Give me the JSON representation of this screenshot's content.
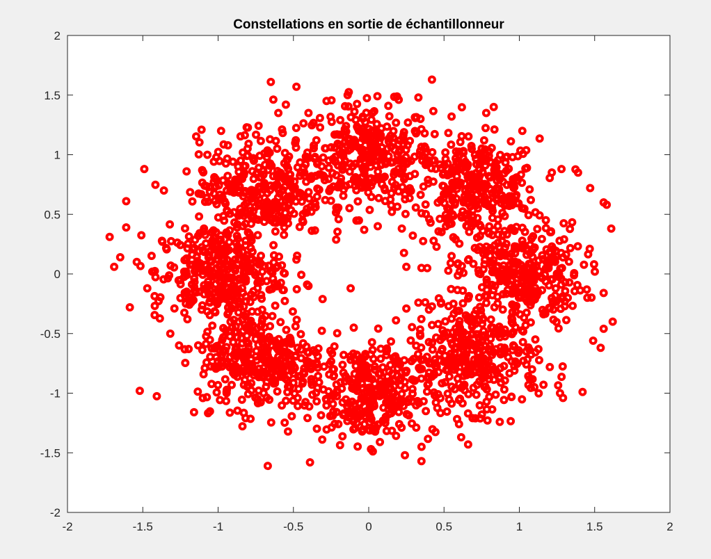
{
  "chart_data": {
    "type": "scatter",
    "title": "Constellations en sortie de échantillonneur",
    "xlabel": "",
    "ylabel": "",
    "xlim": [
      -2,
      2
    ],
    "ylim": [
      -2,
      2
    ],
    "x_ticks": [
      -2,
      -1.5,
      -1,
      -0.5,
      0,
      0.5,
      1,
      1.5,
      2
    ],
    "y_ticks": [
      -2,
      -1.5,
      -1,
      -0.5,
      0,
      0.5,
      1,
      1.5,
      2
    ],
    "x_tick_labels": [
      "-2",
      "-1.5",
      "-1",
      "-0.5",
      "0",
      "0.5",
      "1",
      "1.5",
      "2"
    ],
    "y_tick_labels": [
      "-2",
      "-1.5",
      "-1",
      "-0.5",
      "0",
      "0.5",
      "1",
      "1.5",
      "2"
    ],
    "grid": false,
    "box": true,
    "marker": "o",
    "series": [
      {
        "color": "#ff0000",
        "clusters": [
          {
            "cx": 0.0,
            "cy": 1.0,
            "spread": 0.21
          },
          {
            "cx": 0.71,
            "cy": 0.71,
            "spread": 0.21
          },
          {
            "cx": 1.0,
            "cy": 0.0,
            "spread": 0.21
          },
          {
            "cx": 0.71,
            "cy": -0.71,
            "spread": 0.21
          },
          {
            "cx": 0.0,
            "cy": -1.0,
            "spread": 0.21
          },
          {
            "cx": -0.71,
            "cy": -0.71,
            "spread": 0.21
          },
          {
            "cx": -1.0,
            "cy": 0.0,
            "spread": 0.21
          },
          {
            "cx": -0.71,
            "cy": 0.71,
            "spread": 0.21
          }
        ],
        "points": [
          [
            -1.72,
            0.31
          ],
          [
            -1.69,
            0.06
          ],
          [
            -1.65,
            0.14
          ],
          [
            -1.61,
            0.61
          ],
          [
            -1.61,
            0.39
          ],
          [
            -1.54,
            0.1
          ],
          [
            -1.52,
            -0.98
          ],
          [
            -1.49,
            0.88
          ],
          [
            -1.47,
            -0.12
          ],
          [
            -1.36,
            0.7
          ],
          [
            -1.16,
            -1.16
          ],
          [
            -1.11,
            1.21
          ],
          [
            -0.98,
            1.2
          ],
          [
            -0.81,
            1.23
          ],
          [
            -0.65,
            1.61
          ],
          [
            -0.67,
            -1.61
          ],
          [
            -0.6,
            1.35
          ],
          [
            -0.55,
            1.42
          ],
          [
            -0.48,
            1.57
          ],
          [
            -0.4,
            1.35
          ],
          [
            -0.39,
            -1.58
          ],
          [
            -0.28,
            1.45
          ],
          [
            -0.14,
            1.5
          ],
          [
            0.24,
            -1.52
          ],
          [
            0.33,
            1.48
          ],
          [
            0.42,
            1.63
          ],
          [
            0.35,
            -1.57
          ],
          [
            0.55,
            1.32
          ],
          [
            0.66,
            -1.43
          ],
          [
            0.78,
            1.35
          ],
          [
            0.83,
            1.4
          ],
          [
            0.87,
            -1.24
          ],
          [
            1.02,
            1.2
          ],
          [
            1.1,
            -0.95
          ],
          [
            1.28,
            0.88
          ],
          [
            1.27,
            -1.0
          ],
          [
            1.29,
            -1.04
          ],
          [
            1.39,
            0.85
          ],
          [
            1.42,
            -0.99
          ],
          [
            1.47,
            0.72
          ],
          [
            1.56,
            0.6
          ],
          [
            1.58,
            0.58
          ],
          [
            1.61,
            0.38
          ],
          [
            1.56,
            -0.16
          ],
          [
            1.56,
            -0.46
          ],
          [
            1.62,
            -0.4
          ],
          [
            1.54,
            -0.62
          ],
          [
            1.49,
            -0.56
          ],
          [
            -0.12,
            -0.12
          ],
          [
            0.25,
            -0.29
          ],
          [
            0.33,
            -0.24
          ],
          [
            0.25,
            0.06
          ],
          [
            0.35,
            0.05
          ],
          [
            0.55,
            0.15
          ],
          [
            -0.03,
            0.37
          ],
          [
            0.06,
            0.4
          ],
          [
            0.22,
            0.38
          ],
          [
            -0.48,
            0.12
          ],
          [
            -0.4,
            -0.1
          ],
          [
            0.4,
            -0.3
          ]
        ]
      }
    ]
  }
}
